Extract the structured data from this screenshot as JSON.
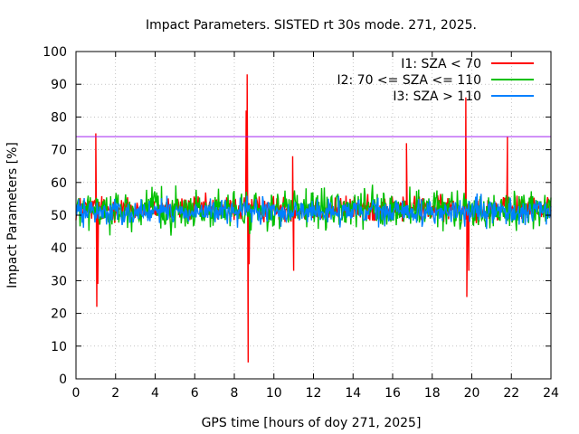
{
  "chart_data": {
    "type": "line",
    "title": "Impact Parameters. SISTED rt 30s mode. 271, 2025.",
    "xlabel": "GPS time [hours of doy 271, 2025]",
    "ylabel": "Impact Parameters [%]",
    "xlim": [
      0,
      24
    ],
    "ylim": [
      0,
      100
    ],
    "x_ticks": [
      "0",
      "2",
      "4",
      "6",
      "8",
      "10",
      "12",
      "14",
      "16",
      "18",
      "20",
      "22",
      "24"
    ],
    "y_ticks": [
      "0",
      "10",
      "20",
      "30",
      "40",
      "50",
      "60",
      "70",
      "80",
      "90",
      "100"
    ],
    "grid": true,
    "legend_position": "top-right",
    "threshold": {
      "value": 74,
      "color": "#a020f0"
    },
    "series": [
      {
        "name": "I1: SZA < 70",
        "color": "#ff0000",
        "band": [
          47,
          57
        ],
        "spikes": [
          {
            "x": 1.0,
            "y": 75
          },
          {
            "x": 1.05,
            "y": 22
          },
          {
            "x": 1.1,
            "y": 29
          },
          {
            "x": 8.6,
            "y": 82
          },
          {
            "x": 8.65,
            "y": 93
          },
          {
            "x": 8.7,
            "y": 5
          },
          {
            "x": 8.75,
            "y": 35
          },
          {
            "x": 10.95,
            "y": 68
          },
          {
            "x": 11.0,
            "y": 33
          },
          {
            "x": 16.7,
            "y": 72
          },
          {
            "x": 19.7,
            "y": 86
          },
          {
            "x": 19.75,
            "y": 25
          },
          {
            "x": 19.85,
            "y": 33
          },
          {
            "x": 21.8,
            "y": 74
          }
        ]
      },
      {
        "name": "I2: 70 <= SZA <= 110",
        "color": "#00c000",
        "band": [
          44,
          59
        ],
        "spikes": []
      },
      {
        "name": "I3: SZA > 110",
        "color": "#0080ff",
        "band": [
          46,
          56
        ],
        "spikes": []
      }
    ]
  }
}
